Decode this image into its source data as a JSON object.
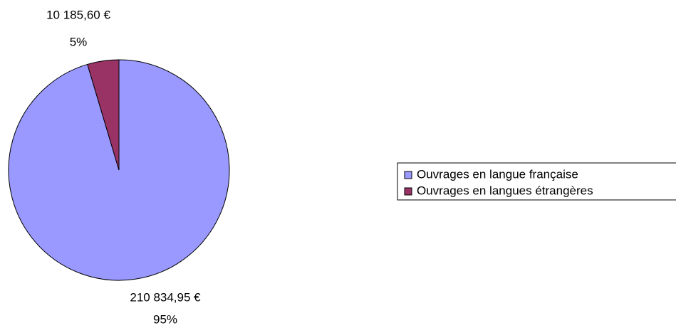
{
  "chart_data": {
    "type": "pie",
    "categories": [
      "Ouvrages en langue française",
      "Ouvrages en langues étrangères"
    ],
    "values": [
      210834.95,
      10185.6
    ],
    "value_labels": [
      "210 834,95 €",
      "10 185,60 €"
    ],
    "percents": [
      95,
      5
    ],
    "percent_labels": [
      "95%",
      "5%"
    ],
    "colors": [
      "#9999ff",
      "#993366"
    ],
    "legend": "right"
  }
}
